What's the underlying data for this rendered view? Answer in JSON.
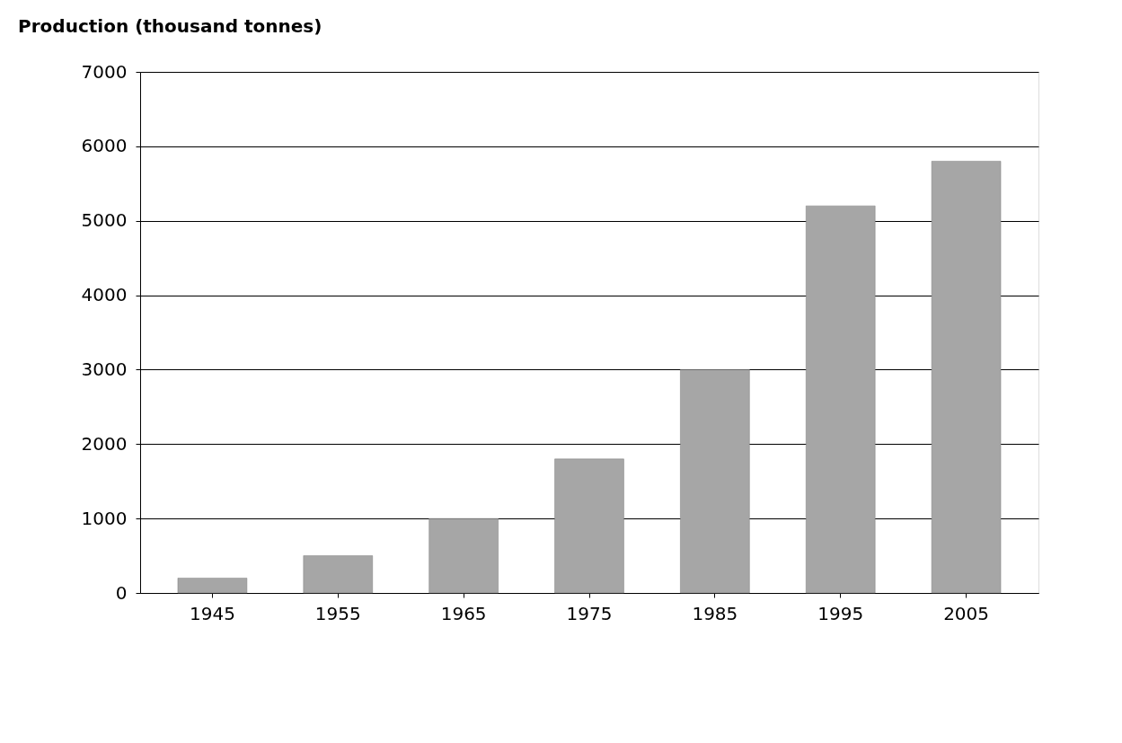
{
  "chart_data": {
    "type": "bar",
    "ylabel": "Production (thousand tonnes)",
    "categories": [
      "1945",
      "1955",
      "1965",
      "1975",
      "1985",
      "1995",
      "2005"
    ],
    "values": [
      200,
      500,
      1000,
      1800,
      3000,
      5200,
      5800
    ],
    "color": "#a6a6a6",
    "ylim": [
      0,
      7000
    ],
    "yticks": [
      0,
      1000,
      2000,
      3000,
      4000,
      5000,
      6000,
      7000
    ],
    "grid": "y"
  }
}
